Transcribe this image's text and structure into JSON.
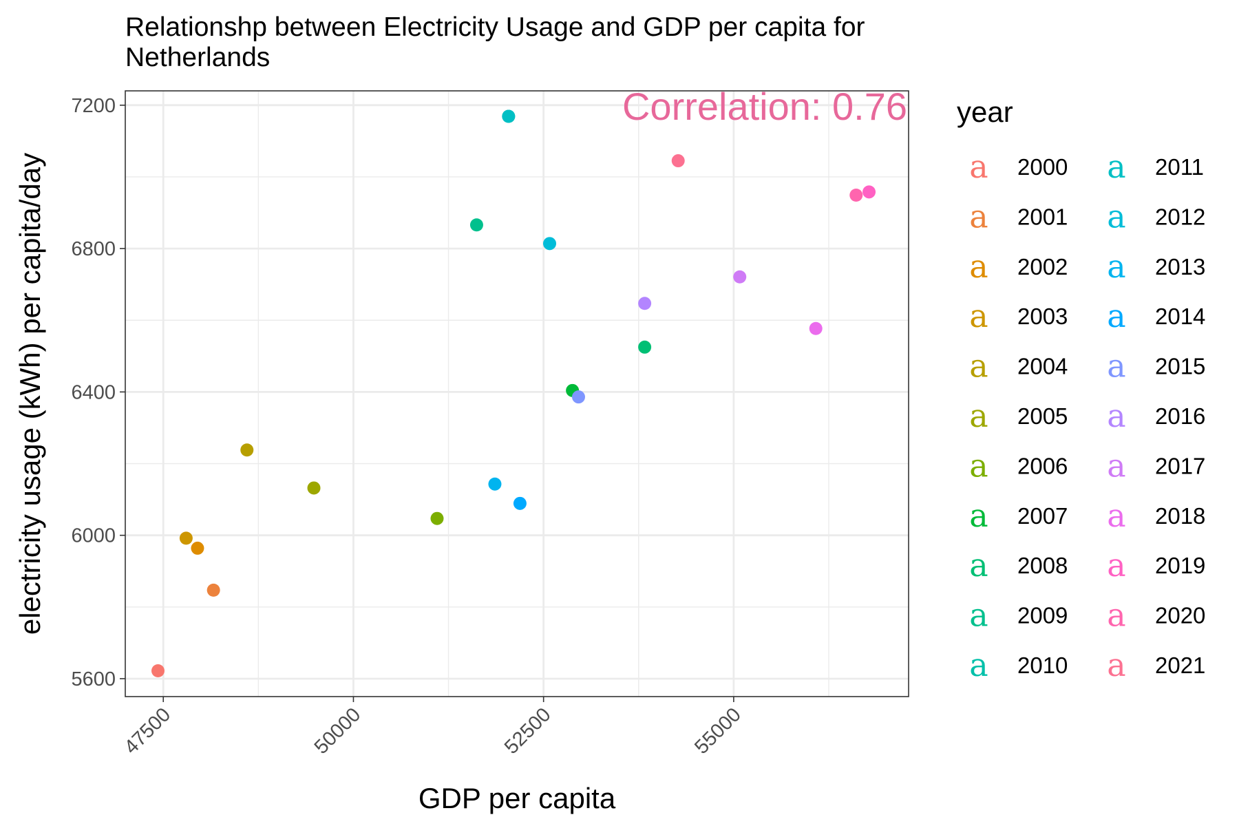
{
  "chart_data": {
    "type": "scatter",
    "title_lines": [
      "Relationshp between Electricity Usage and GDP per capita for",
      "Netherlands"
    ],
    "xlabel": "GDP per capita",
    "ylabel": "electricity usage (kWh) per capita/day",
    "xlim": [
      47000,
      57300
    ],
    "ylim": [
      5550,
      7240
    ],
    "x_ticks": [
      47500,
      50000,
      52500,
      55000
    ],
    "y_ticks": [
      5600,
      6000,
      6400,
      6800,
      7200
    ],
    "grid": true,
    "annotation": {
      "text": "Correlation: 0.76",
      "color": "#E7689A"
    },
    "legend": {
      "title": "year",
      "position": "right",
      "key_glyph": "a"
    },
    "points": [
      {
        "year": "2000",
        "x": 47430,
        "y": 5622,
        "color": "#F8766D"
      },
      {
        "year": "2001",
        "x": 48160,
        "y": 5847,
        "color": "#EC823C"
      },
      {
        "year": "2002",
        "x": 47950,
        "y": 5964,
        "color": "#DE8C00"
      },
      {
        "year": "2003",
        "x": 47800,
        "y": 5992,
        "color": "#CD9600"
      },
      {
        "year": "2004",
        "x": 48600,
        "y": 6238,
        "color": "#B79F00"
      },
      {
        "year": "2005",
        "x": 49480,
        "y": 6132,
        "color": "#9DA700"
      },
      {
        "year": "2006",
        "x": 51100,
        "y": 6047,
        "color": "#7CAE00"
      },
      {
        "year": "2007",
        "x": 52880,
        "y": 6404,
        "color": "#00BA38"
      },
      {
        "year": "2008",
        "x": 53830,
        "y": 6525,
        "color": "#00BF74"
      },
      {
        "year": "2009",
        "x": 51620,
        "y": 6866,
        "color": "#00C08D"
      },
      {
        "year": "2010",
        "x": 52040,
        "y": 7169,
        "color": "#00C0A9"
      },
      {
        "year": "2011",
        "x": 52040,
        "y": 7169,
        "color": "#00BFC4"
      },
      {
        "year": "2012",
        "x": 52580,
        "y": 6814,
        "color": "#00BCD8"
      },
      {
        "year": "2013",
        "x": 51860,
        "y": 6143,
        "color": "#00B4EF"
      },
      {
        "year": "2014",
        "x": 52190,
        "y": 6089,
        "color": "#00A9FF"
      },
      {
        "year": "2015",
        "x": 52960,
        "y": 6386,
        "color": "#7F96FF"
      },
      {
        "year": "2016",
        "x": 53830,
        "y": 6647,
        "color": "#B385FF"
      },
      {
        "year": "2017",
        "x": 55080,
        "y": 6721,
        "color": "#CF7BF6"
      },
      {
        "year": "2018",
        "x": 56080,
        "y": 6577,
        "color": "#EB6CED"
      },
      {
        "year": "2019",
        "x": 56780,
        "y": 6958,
        "color": "#FF61C3"
      },
      {
        "year": "2020",
        "x": 56610,
        "y": 6949,
        "color": "#FF65AE"
      },
      {
        "year": "2021",
        "x": 54270,
        "y": 7045,
        "color": "#FC7191"
      }
    ]
  }
}
